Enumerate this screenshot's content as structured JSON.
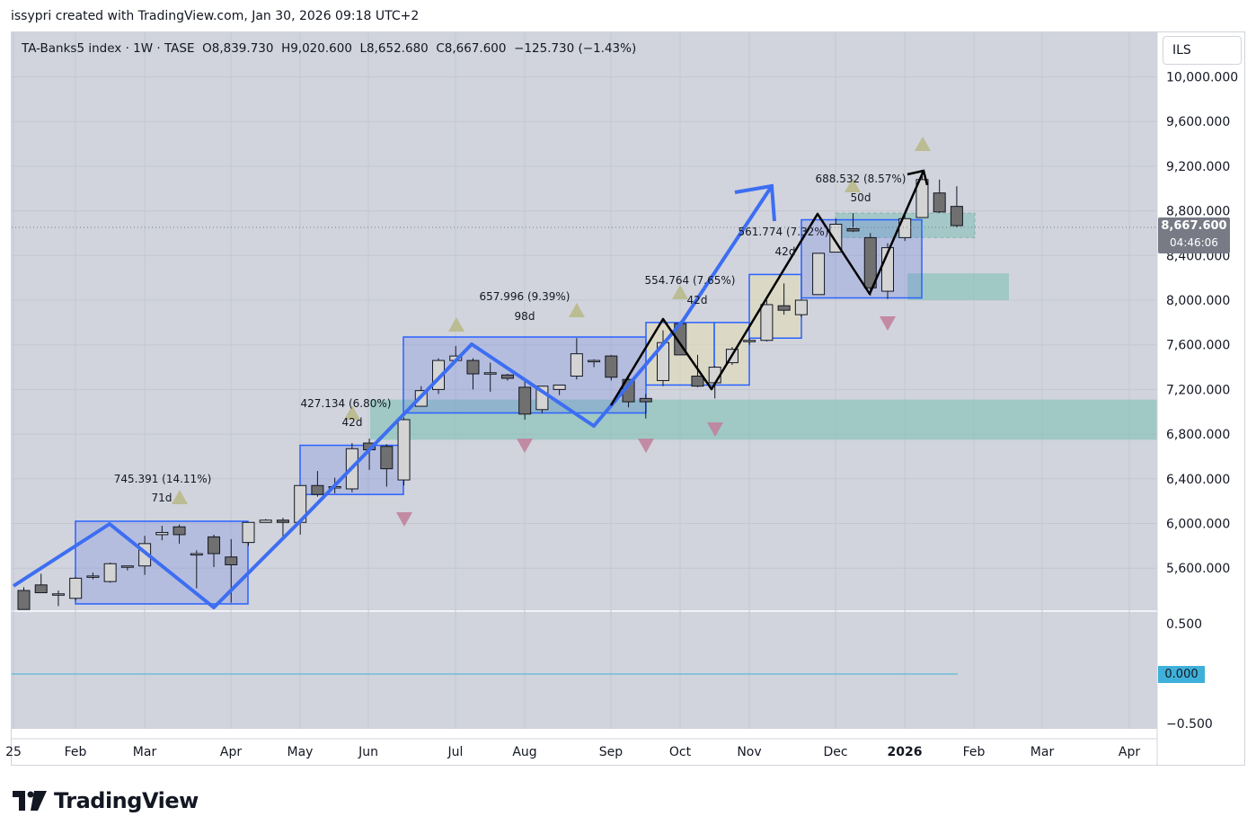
{
  "header": {
    "credit": "issypri created with TradingView.com, Jan 30, 2026 09:18 UTC+2"
  },
  "legend": {
    "symbol": "TA-Banks5 index",
    "interval": "1W",
    "exchange": "TASE",
    "open": "O8,839.730",
    "high": "H9,020.600",
    "low": "L8,652.680",
    "close": "C8,667.600",
    "change": "−125.730 (−1.43%)"
  },
  "currency_button": "ILS",
  "last_price": {
    "value": "8,667.600",
    "countdown": "04:46:06"
  },
  "oscillator_zero_label": "0.000",
  "brand": "TradingView",
  "colors": {
    "bull_body": "#d4d4d4",
    "bear_body": "#707070",
    "wick": "#131722",
    "zigzag": "#3d6ef2",
    "annot_up": "#b8b98a",
    "annot_down": "#c0829c",
    "zone": "#7fbfb6",
    "box": "#2962ff"
  },
  "chart_data": {
    "type": "candlestick",
    "price_axis": {
      "min": 5200,
      "max": 10100,
      "ticks": [
        "10,000.000",
        "9,600.000",
        "9,200.000",
        "8,800.000",
        "8,400.000",
        "8,000.000",
        "7,600.000",
        "7,200.000",
        "6,800.000",
        "6,400.000",
        "6,000.000",
        "5,600.000"
      ]
    },
    "oscillator_axis": {
      "ticks": [
        "0.500",
        "−0.500"
      ]
    },
    "time_axis": [
      "25",
      "Feb",
      "Mar",
      "Apr",
      "May",
      "Jun",
      "Jul",
      "Aug",
      "Sep",
      "Oct",
      "Nov",
      "Dec",
      "2026",
      "Feb",
      "Mar",
      "Apr"
    ],
    "candles": [
      {
        "o": 5400,
        "h": 5430,
        "l": 5230,
        "c": 5230
      },
      {
        "o": 5450,
        "h": 5550,
        "l": 5380,
        "c": 5380
      },
      {
        "o": 5370,
        "h": 5400,
        "l": 5260,
        "c": 5370
      },
      {
        "o": 5330,
        "h": 5520,
        "l": 5310,
        "c": 5510
      },
      {
        "o": 5520,
        "h": 5560,
        "l": 5500,
        "c": 5530
      },
      {
        "o": 5480,
        "h": 5650,
        "l": 5470,
        "c": 5640
      },
      {
        "o": 5610,
        "h": 5620,
        "l": 5580,
        "c": 5620
      },
      {
        "o": 5620,
        "h": 5890,
        "l": 5540,
        "c": 5820
      },
      {
        "o": 5900,
        "h": 5980,
        "l": 5850,
        "c": 5920
      },
      {
        "o": 5970,
        "h": 5990,
        "l": 5820,
        "c": 5900
      },
      {
        "o": 5720,
        "h": 5760,
        "l": 5420,
        "c": 5730
      },
      {
        "o": 5880,
        "h": 5900,
        "l": 5610,
        "c": 5730
      },
      {
        "o": 5700,
        "h": 5860,
        "l": 5290,
        "c": 5630
      },
      {
        "o": 5830,
        "h": 6010,
        "l": 5800,
        "c": 6010
      },
      {
        "o": 6010,
        "h": 6040,
        "l": 6010,
        "c": 6030
      },
      {
        "o": 6030,
        "h": 6050,
        "l": 5860,
        "c": 6010
      },
      {
        "o": 6010,
        "h": 6340,
        "l": 5900,
        "c": 6340
      },
      {
        "o": 6340,
        "h": 6470,
        "l": 6240,
        "c": 6260
      },
      {
        "o": 6330,
        "h": 6410,
        "l": 6270,
        "c": 6330
      },
      {
        "o": 6310,
        "h": 6720,
        "l": 6280,
        "c": 6670
      },
      {
        "o": 6720,
        "h": 6760,
        "l": 6480,
        "c": 6660
      },
      {
        "o": 6690,
        "h": 6710,
        "l": 6330,
        "c": 6490
      },
      {
        "o": 6390,
        "h": 6950,
        "l": 6340,
        "c": 6930
      },
      {
        "o": 7050,
        "h": 7230,
        "l": 7050,
        "c": 7190
      },
      {
        "o": 7200,
        "h": 7480,
        "l": 7160,
        "c": 7460
      },
      {
        "o": 7460,
        "h": 7590,
        "l": 7460,
        "c": 7500
      },
      {
        "o": 7460,
        "h": 7480,
        "l": 7200,
        "c": 7340
      },
      {
        "o": 7350,
        "h": 7440,
        "l": 7180,
        "c": 7350
      },
      {
        "o": 7330,
        "h": 7340,
        "l": 7280,
        "c": 7300
      },
      {
        "o": 7220,
        "h": 7290,
        "l": 6930,
        "c": 6980
      },
      {
        "o": 7020,
        "h": 7230,
        "l": 6990,
        "c": 7230
      },
      {
        "o": 7200,
        "h": 7240,
        "l": 7150,
        "c": 7240
      },
      {
        "o": 7320,
        "h": 7660,
        "l": 7290,
        "c": 7520
      },
      {
        "o": 7450,
        "h": 7470,
        "l": 7400,
        "c": 7460
      },
      {
        "o": 7500,
        "h": 7510,
        "l": 7280,
        "c": 7310
      },
      {
        "o": 7290,
        "h": 7310,
        "l": 7040,
        "c": 7090
      },
      {
        "o": 7120,
        "h": 7160,
        "l": 6940,
        "c": 7090
      },
      {
        "o": 7280,
        "h": 7730,
        "l": 7230,
        "c": 7620
      },
      {
        "o": 7790,
        "h": 7800,
        "l": 7540,
        "c": 7510
      },
      {
        "o": 7320,
        "h": 7510,
        "l": 7220,
        "c": 7230
      },
      {
        "o": 7260,
        "h": 7410,
        "l": 7120,
        "c": 7400
      },
      {
        "o": 7440,
        "h": 7580,
        "l": 7420,
        "c": 7560
      },
      {
        "o": 7640,
        "h": 7660,
        "l": 7600,
        "c": 7640
      },
      {
        "o": 7640,
        "h": 8000,
        "l": 7630,
        "c": 7960
      },
      {
        "o": 7950,
        "h": 8150,
        "l": 7870,
        "c": 7910
      },
      {
        "o": 7870,
        "h": 8000,
        "l": 7850,
        "c": 8000
      },
      {
        "o": 8050,
        "h": 8420,
        "l": 8050,
        "c": 8420
      },
      {
        "o": 8430,
        "h": 8730,
        "l": 8430,
        "c": 8680
      },
      {
        "o": 8640,
        "h": 8780,
        "l": 8610,
        "c": 8620
      },
      {
        "o": 8560,
        "h": 8600,
        "l": 8040,
        "c": 8110
      },
      {
        "o": 8080,
        "h": 8510,
        "l": 8010,
        "c": 8470
      },
      {
        "o": 8560,
        "h": 8770,
        "l": 8530,
        "c": 8730
      },
      {
        "o": 8740,
        "h": 9140,
        "l": 8740,
        "c": 9080
      },
      {
        "o": 8960,
        "h": 9080,
        "l": 8780,
        "c": 8790
      },
      {
        "o": 8839.73,
        "h": 9020.6,
        "l": 8652.68,
        "c": 8667.6
      }
    ],
    "annotations": [
      {
        "text": "745.391 (14.11%)",
        "sub": "71d"
      },
      {
        "text": "427.134 (6.80%)",
        "sub": "42d"
      },
      {
        "text": "657.996 (9.39%)",
        "sub": "98d"
      },
      {
        "text": "554.764 (7.65%)",
        "sub": "42d"
      },
      {
        "text": "561.774 (7.32%)",
        "sub": "42d"
      },
      {
        "text": "688.532 (8.57%)",
        "sub": "50d"
      }
    ]
  }
}
